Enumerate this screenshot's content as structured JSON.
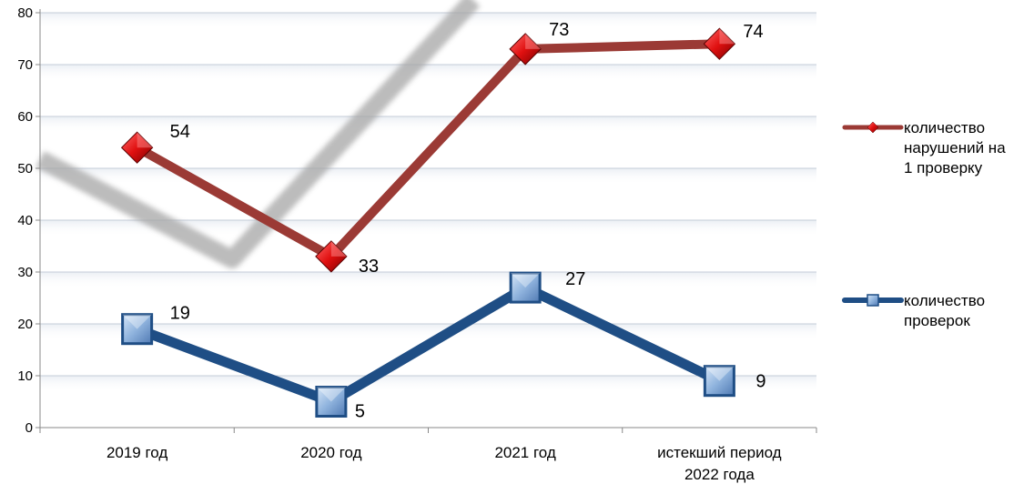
{
  "chart_data": {
    "type": "line",
    "title": "",
    "xlabel": "",
    "ylabel": "",
    "categories": [
      [
        "2019 год"
      ],
      [
        "2020 год"
      ],
      [
        "2021 год"
      ],
      [
        "истекший период",
        "2022 года"
      ]
    ],
    "ylim": [
      0,
      80
    ],
    "yticks": [
      0,
      10,
      20,
      30,
      40,
      50,
      60,
      70,
      80
    ],
    "grid": true,
    "legend_position": "right",
    "series": [
      {
        "name": [
          "количество",
          "нарушений на",
          "1 проверку"
        ],
        "values": [
          54,
          33,
          73,
          74
        ],
        "color": "#9B3A35",
        "marker": "red-diamond"
      },
      {
        "name": [
          "количество",
          "проверок"
        ],
        "values": [
          19,
          5,
          27,
          9
        ],
        "color": "#1F4E85",
        "marker": "blue-square"
      }
    ]
  },
  "decoration": {
    "watermark_color": "#A6A6A6"
  }
}
